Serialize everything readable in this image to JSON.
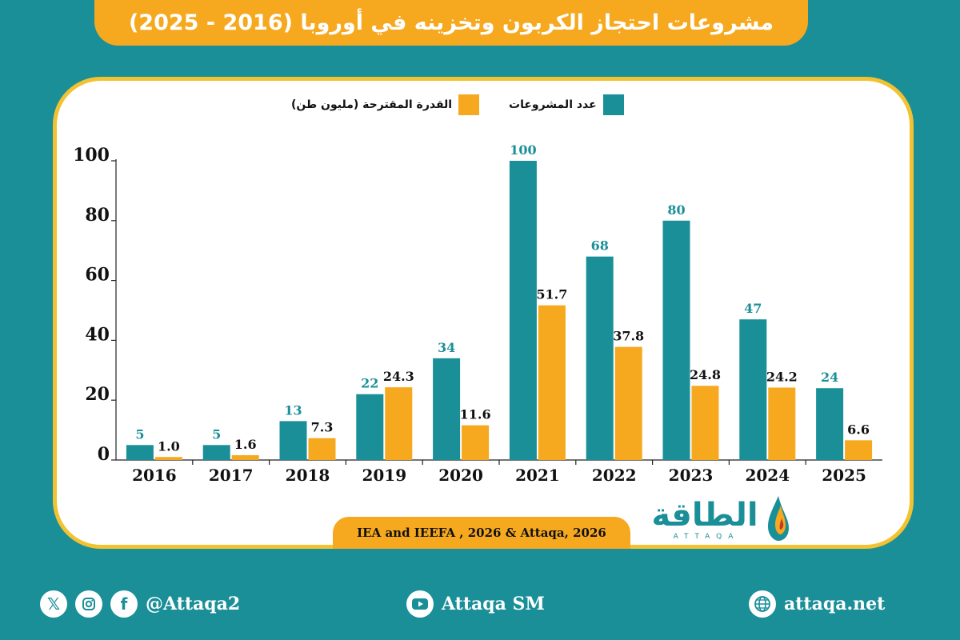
{
  "title": "مشروعات احتجاز الكربون وتخزينه في أوروبا (2016 - 2025)",
  "legend": {
    "projects_label": "عدد المشروعات",
    "capacity_label": "القدرة المقترحة (مليون طن)"
  },
  "source": "IEA and IEEFA , 2026 & Attaqa, 2026",
  "logo": {
    "arabic": "الطاقة",
    "latin": "ATTAQA"
  },
  "footer": {
    "social_handle": "@Attaqa2",
    "youtube_label": "Attaqa SM",
    "website": "attaqa.net"
  },
  "colors": {
    "projects": "#1a8f98",
    "capacity": "#f6a81f",
    "banner": "#f6a81f",
    "background": "#1a8f98",
    "card_border": "#f2c230"
  },
  "chart_data": {
    "type": "bar",
    "categories": [
      "2016",
      "2017",
      "2018",
      "2019",
      "2020",
      "2021",
      "2022",
      "2023",
      "2024",
      "2025"
    ],
    "series": [
      {
        "name": "عدد المشروعات",
        "values": [
          5,
          5,
          13,
          22,
          34,
          100,
          68,
          80,
          47,
          24
        ],
        "labels": [
          "5",
          "5",
          "13",
          "22",
          "34",
          "100",
          "68",
          "80",
          "47",
          "24"
        ],
        "color": "#1a8f98"
      },
      {
        "name": "القدرة المقترحة (مليون طن)",
        "values": [
          1.0,
          1.6,
          7.3,
          24.3,
          11.6,
          51.7,
          37.8,
          24.8,
          24.2,
          6.6
        ],
        "labels": [
          "1.0",
          "1.6",
          "7.3",
          "24.3",
          "11.6",
          "51.7",
          "37.8",
          "24.8",
          "24.2",
          "6.6"
        ],
        "color": "#f6a81f"
      }
    ],
    "yticks": [
      "0",
      "20",
      "40",
      "60",
      "80",
      "100"
    ],
    "ylim": [
      0,
      100
    ],
    "legend_position": "top",
    "grid": false
  }
}
